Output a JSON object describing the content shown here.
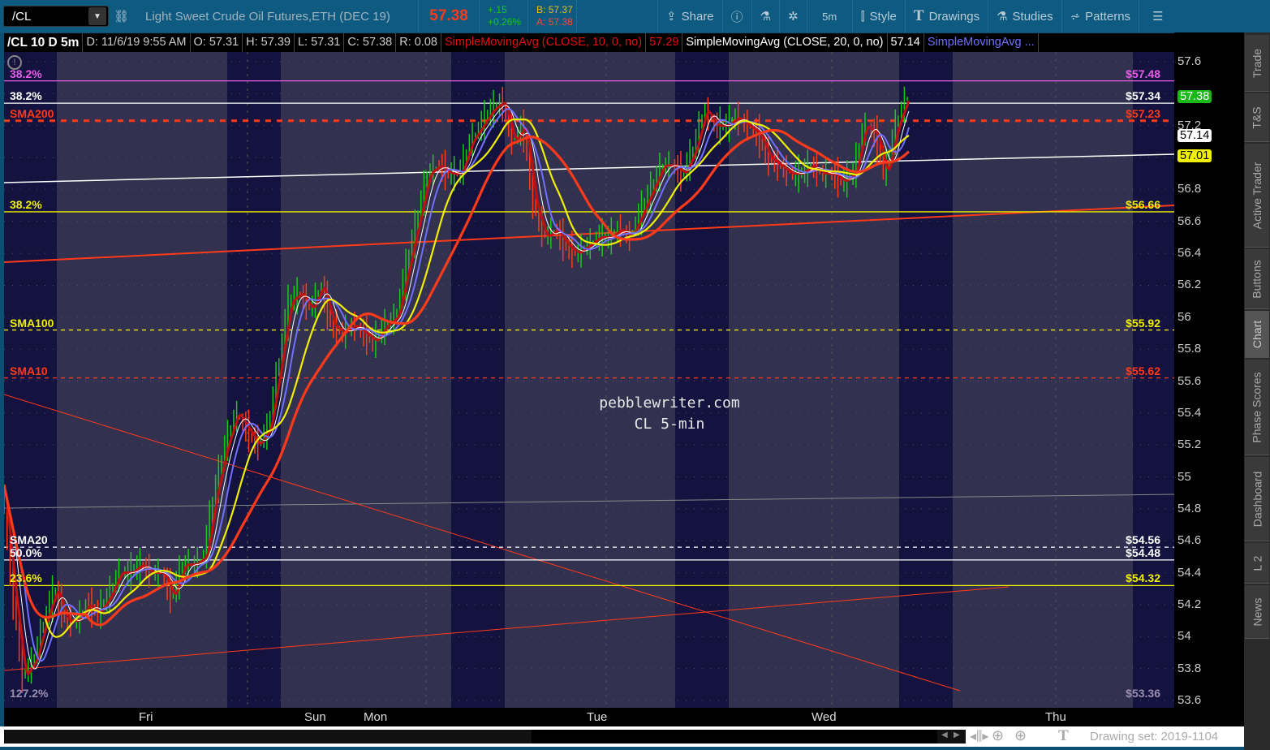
{
  "toolbar": {
    "symbol": "/CL",
    "description": "Light Sweet Crude Oil Futures,ETH (DEC 19)",
    "last": "57.38",
    "change": "+.15",
    "change_pct": "+0.26%",
    "bid": "B: 57.37",
    "ask": "A: 57.38",
    "share": "Share",
    "timeframe": "5m",
    "style": "Style",
    "drawings": "Drawings",
    "studies": "Studies",
    "patterns": "Patterns"
  },
  "infobar": {
    "title": "/CL 10 D 5m",
    "date": "D: 11/6/19 9:55 AM",
    "open": "O: 57.31",
    "high": "H: 57.39",
    "low": "L: 57.31",
    "close": "C: 57.38",
    "range": "R: 0.08",
    "sma1": "SimpleMovingAvg (CLOSE, 10, 0, no)",
    "sma1_val": "57.29",
    "sma2": "SimpleMovingAvg (CLOSE, 20, 0, no)",
    "sma2_val": "57.14",
    "sma3": "SimpleMovingAvg ..."
  },
  "levels": [
    {
      "left": "38.2%",
      "right": "$57.48",
      "price": 57.48,
      "color": "#e85ce8",
      "style": "solid"
    },
    {
      "left": "38.2%",
      "right": "$57.34",
      "price": 57.34,
      "color": "#ffffff",
      "style": "solid"
    },
    {
      "left": "SMA200",
      "right": "$57.23",
      "price": 57.23,
      "color": "#ff3a1a",
      "style": "dotted"
    },
    {
      "left": "38.2%",
      "right": "$56.66",
      "price": 56.66,
      "color": "#f0f000",
      "style": "solid"
    },
    {
      "left": "SMA100",
      "right": "$55.92",
      "price": 55.92,
      "color": "#f0f000",
      "style": "dashed"
    },
    {
      "left": "SMA10",
      "right": "$55.62",
      "price": 55.62,
      "color": "#ff3a1a",
      "style": "dashed"
    },
    {
      "left": "SMA20",
      "right": "$54.56",
      "price": 54.56,
      "color": "#ffffff",
      "style": "dashed"
    },
    {
      "left": "50.0%",
      "right": "$54.48",
      "price": 54.48,
      "color": "#ffffff",
      "style": "solid"
    },
    {
      "left": "23.6%",
      "right": "$54.32",
      "price": 54.32,
      "color": "#f0f000",
      "style": "solid"
    },
    {
      "left": "127.2%",
      "right": "$53.36",
      "price": 53.6,
      "color": "#9a8fb0",
      "style": "none"
    }
  ],
  "watermark": {
    "line1": "pebblewriter.com",
    "line2": "CL 5-min"
  },
  "yaxis": {
    "ticks": [
      "57.6",
      "57.2",
      "56.8",
      "56.6",
      "56.4",
      "56.2",
      "56",
      "55.8",
      "55.6",
      "55.4",
      "55.2",
      "55",
      "54.8",
      "54.6",
      "54.4",
      "54.2",
      "54",
      "53.8",
      "53.6"
    ],
    "badges": [
      {
        "text": "57.38",
        "bg": "#18b818",
        "fg": "#fff"
      },
      {
        "text": "57.14",
        "bg": "#ffffff",
        "fg": "#000"
      },
      {
        "text": "57.01",
        "bg": "#f0f000",
        "fg": "#000"
      }
    ]
  },
  "xaxis": [
    "Fri",
    "Sun",
    "Mon",
    "Tue",
    "Wed",
    "Thu"
  ],
  "footer": {
    "drawing_set": "Drawing set: 2019-1104"
  },
  "side_tabs": [
    "Trade",
    "T&S",
    "Active Trader",
    "Buttons",
    "Chart",
    "Phase Scores",
    "Dashboard",
    "L 2",
    "News"
  ],
  "colors": {
    "session_dark": "#14123f",
    "session_light": "#32314f",
    "sma10": "#ffffff",
    "sma20": "#7070ff",
    "sma50": "#f0f000",
    "sma100": "#ff3a1a"
  },
  "chart_data": {
    "type": "line",
    "ylim": [
      53.6,
      57.6
    ],
    "closes": [
      54.95,
      54.3,
      53.75,
      53.85,
      54.1,
      54.3,
      54.1,
      54.1,
      54.2,
      54.15,
      54.25,
      54.4,
      54.4,
      54.45,
      54.4,
      54.4,
      54.25,
      54.45,
      54.45,
      54.5,
      54.9,
      55.2,
      55.4,
      55.3,
      55.2,
      55.3,
      55.7,
      56.1,
      56.15,
      56.05,
      56.2,
      55.95,
      55.9,
      55.95,
      55.9,
      55.85,
      55.95,
      56.0,
      56.3,
      56.6,
      56.9,
      56.95,
      56.9,
      56.9,
      57.1,
      57.2,
      57.3,
      57.35,
      57.1,
      57.2,
      56.7,
      56.5,
      56.55,
      56.45,
      56.4,
      56.45,
      56.5,
      56.5,
      56.55,
      56.5,
      56.65,
      56.8,
      56.95,
      56.95,
      56.9,
      57.05,
      57.3,
      57.2,
      57.2,
      57.25,
      57.2,
      57.15,
      57.0,
      56.95,
      56.9,
      56.9,
      56.95,
      56.9,
      56.9,
      56.85,
      56.9,
      57.2,
      57.15,
      56.9,
      57.2,
      57.38
    ]
  }
}
